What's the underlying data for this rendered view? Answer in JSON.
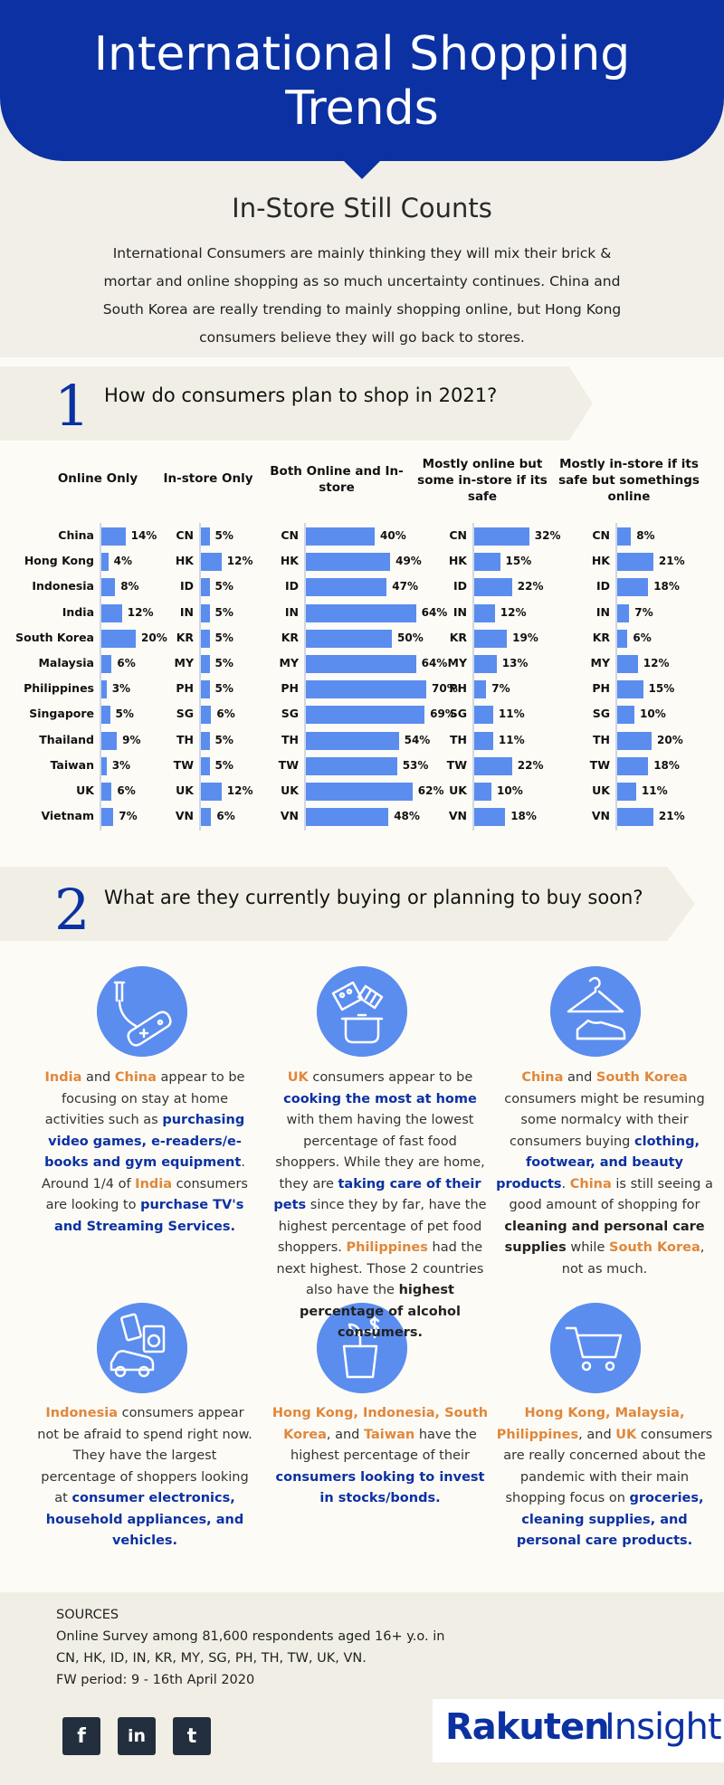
{
  "header": {
    "title_line1": "International Shopping",
    "title_line2": "Trends",
    "subtitle": "In-Store Still Counts",
    "intro": "International Consumers are mainly thinking they will mix their brick & mortar and online shopping as so much uncertainty continues. China and South Korea are really trending to mainly shopping online, but Hong Kong consumers believe they will go back to stores."
  },
  "section1": {
    "number": "1",
    "question": "How do consumers plan to shop in 2021?"
  },
  "section2": {
    "number": "2",
    "question": "What are they currently buying or planning to buy soon?"
  },
  "chart_data": [
    {
      "type": "bar",
      "title": "Online Only",
      "categories": [
        "China",
        "Hong Kong",
        "Indonesia",
        "India",
        "South Korea",
        "Malaysia",
        "Philippines",
        "Singapore",
        "Thailand",
        "Taiwan",
        "UK",
        "Vietnam"
      ],
      "values": [
        14,
        4,
        8,
        12,
        20,
        6,
        3,
        5,
        9,
        3,
        6,
        7
      ],
      "labels": [
        "14%",
        "4%",
        "8%",
        "12%",
        "20%",
        "6%",
        "3%",
        "5%",
        "9%",
        "3%",
        "6%",
        "7%"
      ]
    },
    {
      "type": "bar",
      "title": "In-store Only",
      "categories": [
        "CN",
        "HK",
        "ID",
        "IN",
        "KR",
        "MY",
        "PH",
        "SG",
        "TH",
        "TW",
        "UK",
        "VN"
      ],
      "values": [
        5,
        12,
        5,
        5,
        5,
        5,
        5,
        6,
        5,
        5,
        12,
        6
      ],
      "labels": [
        "5%",
        "12%",
        "5%",
        "5%",
        "5%",
        "5%",
        "5%",
        "6%",
        "5%",
        "5%",
        "12%",
        "6%"
      ]
    },
    {
      "type": "bar",
      "title": "Both Online and In-store",
      "categories": [
        "CN",
        "HK",
        "ID",
        "IN",
        "KR",
        "MY",
        "PH",
        "SG",
        "TH",
        "TW",
        "UK",
        "VN"
      ],
      "values": [
        40,
        49,
        47,
        64,
        50,
        64,
        70,
        69,
        54,
        53,
        62,
        48
      ],
      "labels": [
        "40%",
        "49%",
        "47%",
        "64%",
        "50%",
        "64%",
        "70%",
        "69%",
        "54%",
        "53%",
        "62%",
        "48%"
      ]
    },
    {
      "type": "bar",
      "title": "Mostly online but some in-store if its safe",
      "categories": [
        "CN",
        "HK",
        "ID",
        "IN",
        "KR",
        "MY",
        "PH",
        "SG",
        "TH",
        "TW",
        "UK",
        "VN"
      ],
      "values": [
        32,
        15,
        22,
        12,
        19,
        13,
        7,
        11,
        11,
        22,
        10,
        18
      ],
      "labels": [
        "32%",
        "15%",
        "22%",
        "12%",
        "19%",
        "13%",
        "7%",
        "11%",
        "11%",
        "22%",
        "10%",
        "18%"
      ]
    },
    {
      "type": "bar",
      "title": "Mostly in-store if its safe  but somethings online",
      "categories": [
        "CN",
        "HK",
        "ID",
        "IN",
        "KR",
        "MY",
        "PH",
        "SG",
        "TH",
        "TW",
        "UK",
        "VN"
      ],
      "values": [
        8,
        21,
        18,
        7,
        6,
        12,
        15,
        10,
        20,
        18,
        11,
        21
      ],
      "labels": [
        "8%",
        "21%",
        "18%",
        "7%",
        "6%",
        "12%",
        "15%",
        "10%",
        "20%",
        "18%",
        "11%",
        "21%"
      ]
    }
  ],
  "cards": [
    {
      "icon": "games-icon",
      "segments": [
        [
          "o",
          "India"
        ],
        [
          "t",
          " and "
        ],
        [
          "o",
          "China"
        ],
        [
          "t",
          " appear to be focusing on stay at home activities such as "
        ],
        [
          "b",
          "purchasing video games, e-readers/e-books and gym equipment"
        ],
        [
          "t",
          ". Around 1/4 of "
        ],
        [
          "o",
          "India"
        ],
        [
          "t",
          " consumers are looking to "
        ],
        [
          "b",
          "purchase TV's and Streaming Services."
        ]
      ]
    },
    {
      "icon": "cooking-icon",
      "segments": [
        [
          "o",
          "UK"
        ],
        [
          "t",
          " consumers appear to be "
        ],
        [
          "b",
          "cooking the most at home"
        ],
        [
          "t",
          " with them having the lowest percentage of fast food shoppers. While they are home, they are "
        ],
        [
          "b",
          "taking care of their pets"
        ],
        [
          "t",
          " since they by far, have the highest percentage of pet food shoppers. "
        ],
        [
          "o",
          "Philippines"
        ],
        [
          "t",
          " had the next highest. Those 2 countries also have the "
        ],
        [
          "k",
          "highest percentage of alcohol consumers."
        ]
      ]
    },
    {
      "icon": "clothing-icon",
      "segments": [
        [
          "o",
          "China"
        ],
        [
          "t",
          " and "
        ],
        [
          "o",
          "South Korea"
        ],
        [
          "t",
          " consumers might be resuming some normalcy with their consumers buying "
        ],
        [
          "b",
          "clothing, footwear, and beauty products"
        ],
        [
          "t",
          ". "
        ],
        [
          "o",
          "China"
        ],
        [
          "t",
          " is still seeing a good amount of shopping for "
        ],
        [
          "k",
          "cleaning and personal care supplies"
        ],
        [
          "t",
          " while "
        ],
        [
          "o",
          "South Korea"
        ],
        [
          "t",
          ", not as much."
        ]
      ]
    },
    {
      "icon": "electronics-icon",
      "segments": [
        [
          "o",
          "Indonesia"
        ],
        [
          "t",
          " consumers appear not be afraid to spend right now. They have the largest percentage of shoppers looking at "
        ],
        [
          "b",
          "consumer electronics, household appliances, and vehicles."
        ]
      ]
    },
    {
      "icon": "investment-icon",
      "segments": [
        [
          "o",
          "Hong Kong, Indonesia, South Korea"
        ],
        [
          "t",
          ", and "
        ],
        [
          "o",
          "Taiwan"
        ],
        [
          "t",
          " have the highest percentage of their "
        ],
        [
          "b",
          "consumers looking to invest in stocks/bonds."
        ]
      ]
    },
    {
      "icon": "cart-icon",
      "segments": [
        [
          "o",
          "Hong Kong, Malaysia, Philippines"
        ],
        [
          "t",
          ", and "
        ],
        [
          "o",
          "UK"
        ],
        [
          "t",
          " consumers are really concerned about the pandemic with their main shopping focus on "
        ],
        [
          "b",
          "groceries, cleaning supplies, and personal care products."
        ]
      ]
    }
  ],
  "footer": {
    "sources_title": "SOURCES",
    "line1": "Online Survey among 81,600 respondents aged 16+ y.o. in",
    "line2": "CN, HK, ID, IN, KR, MY, SG, PH, TH, TW, UK, VN.",
    "line3": "FW period: 9 - 16th April 2020",
    "social": [
      {
        "icon": "facebook-icon",
        "glyph": "f"
      },
      {
        "icon": "linkedin-icon",
        "glyph": "in"
      },
      {
        "icon": "twitter-icon",
        "glyph": "t"
      }
    ],
    "logo_brand": "Rakuten",
    "logo_sub": "Insight"
  },
  "colors": {
    "brand": "#0b31a2",
    "bar": "#5b8def",
    "highlight": "#e0873a"
  }
}
